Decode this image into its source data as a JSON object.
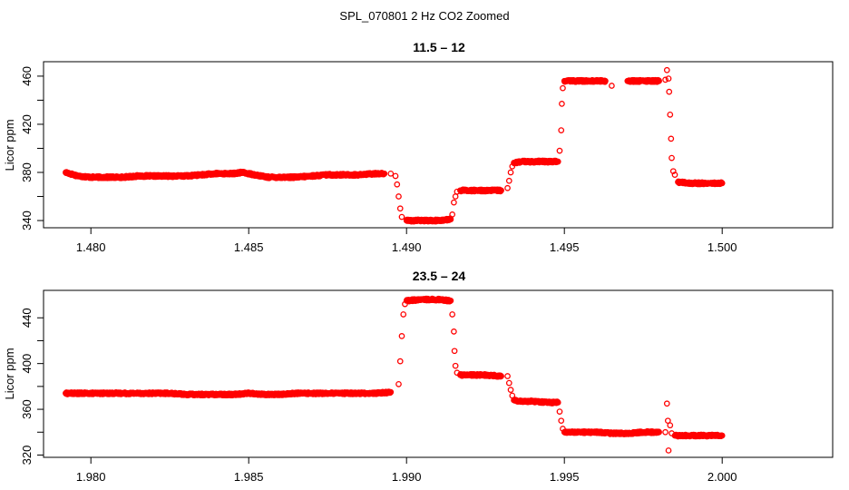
{
  "figure": {
    "title": "SPL_070801  2 Hz CO2 Zoomed"
  },
  "marker_color": "#ff0000",
  "chart_data": [
    {
      "type": "scatter",
      "title": "11.5 – 12",
      "xlabel": "",
      "ylabel": "Licor ppm",
      "xlim": [
        1.4785,
        1.5035
      ],
      "ylim": [
        334,
        472
      ],
      "xticks": [
        1.48,
        1.485,
        1.49,
        1.495,
        1.5
      ],
      "xtick_labels": [
        "1.480",
        "1.485",
        "1.490",
        "1.495",
        "1.500"
      ],
      "yticks": [
        340,
        380,
        420,
        460
      ],
      "ytick_labels": [
        "340",
        "380",
        "420",
        "460"
      ],
      "grid": false,
      "legend": "none",
      "series": [
        {
          "marker": "open-circle",
          "x": [
            1.4792,
            1.4796,
            1.48,
            1.4805,
            1.481,
            1.4815,
            1.482,
            1.4825,
            1.483,
            1.4835,
            1.484,
            1.4845,
            1.4848,
            1.4852,
            1.4856,
            1.486,
            1.4865,
            1.487,
            1.4875,
            1.488,
            1.4885,
            1.489,
            1.4893,
            1.4895,
            1.48965,
            1.4897,
            1.48975,
            1.4898,
            1.48985,
            1.49,
            1.4905,
            1.491,
            1.4914,
            1.49145,
            1.4915,
            1.49155,
            1.4916,
            1.4917,
            1.492,
            1.4925,
            1.493,
            1.4932,
            1.49325,
            1.4933,
            1.49335,
            1.4934,
            1.4937,
            1.494,
            1.4945,
            1.4948,
            1.49485,
            1.4949,
            1.49492,
            1.49495,
            1.495,
            1.4955,
            1.496,
            1.4963,
            1.4965,
            1.497,
            1.4975,
            1.498,
            1.4982,
            1.49825,
            1.4983,
            1.49832,
            1.49835,
            1.49838,
            1.4984,
            1.49845,
            1.4985,
            1.4986,
            1.499,
            1.4995,
            1.5
          ],
          "y": [
            380,
            377,
            376,
            376,
            376,
            377,
            377,
            377,
            377,
            378,
            379,
            379,
            380,
            378,
            376,
            376,
            376,
            377,
            378,
            378,
            378,
            379,
            379,
            379,
            377,
            370,
            360,
            350,
            343,
            340,
            340,
            340,
            341,
            345,
            355,
            360,
            364,
            365,
            365,
            365,
            365,
            367,
            373,
            380,
            385,
            388,
            389,
            389,
            389,
            389,
            398,
            415,
            437,
            450,
            456,
            456,
            456,
            456,
            452,
            456,
            456,
            456,
            457,
            465,
            458,
            447,
            428,
            408,
            392,
            381,
            378,
            372,
            371,
            371,
            371
          ]
        }
      ]
    },
    {
      "type": "scatter",
      "title": "23.5 – 24",
      "xlabel": "",
      "ylabel": "Licor ppm",
      "xlim": [
        1.9785,
        2.0035
      ],
      "ylim": [
        318,
        464
      ],
      "xticks": [
        1.98,
        1.985,
        1.99,
        1.995,
        2.0
      ],
      "xtick_labels": [
        "1.980",
        "1.985",
        "1.990",
        "1.995",
        "2.000"
      ],
      "yticks": [
        320,
        360,
        400,
        440
      ],
      "ytick_labels": [
        "320",
        "360",
        "400",
        "440"
      ],
      "grid": false,
      "legend": "none",
      "series": [
        {
          "marker": "open-circle",
          "x": [
            1.9792,
            1.98,
            1.9805,
            1.981,
            1.9815,
            1.982,
            1.9825,
            1.983,
            1.9835,
            1.984,
            1.9845,
            1.985,
            1.9855,
            1.986,
            1.9865,
            1.987,
            1.9875,
            1.988,
            1.9885,
            1.989,
            1.9895,
            1.98975,
            1.9898,
            1.98985,
            1.9899,
            1.98995,
            1.99,
            1.9905,
            1.991,
            1.9914,
            1.99145,
            1.9915,
            1.99152,
            1.99155,
            1.9916,
            1.9917,
            1.992,
            1.9925,
            1.993,
            1.9932,
            1.99325,
            1.9933,
            1.99335,
            1.9934,
            1.9937,
            1.994,
            1.9945,
            1.9948,
            1.99485,
            1.9949,
            1.99495,
            1.995,
            1.9955,
            1.996,
            1.9965,
            1.997,
            1.9975,
            1.998,
            1.9982,
            1.99825,
            1.99828,
            1.9983,
            1.99835,
            1.9984,
            1.9985,
            1.999,
            1.9995,
            2.0
          ],
          "y": [
            374,
            374,
            374,
            374,
            374,
            374,
            374,
            373,
            373,
            373,
            373,
            374,
            373,
            373,
            374,
            374,
            374,
            374,
            374,
            374,
            375,
            382,
            402,
            424,
            443,
            452,
            455,
            456,
            456,
            455,
            443,
            428,
            411,
            398,
            392,
            390,
            390,
            390,
            389,
            389,
            383,
            377,
            372,
            368,
            367,
            367,
            366,
            366,
            358,
            350,
            343,
            340,
            340,
            340,
            339,
            339,
            340,
            340,
            340,
            365,
            350,
            324,
            346,
            339,
            337,
            337,
            337,
            337
          ]
        }
      ]
    }
  ]
}
